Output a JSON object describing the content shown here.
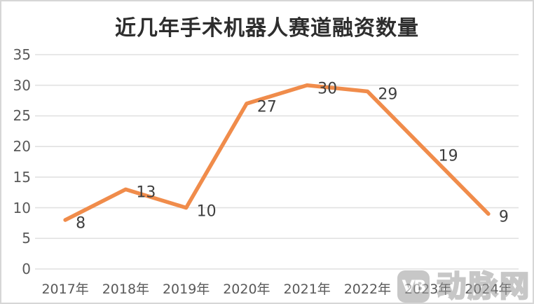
{
  "watermark": {
    "logo_text": "VB",
    "name": "动脉网"
  },
  "chart_data": {
    "type": "line",
    "title": "近几年手术机器人赛道融资数量",
    "categories": [
      "2017年",
      "2018年",
      "2019年",
      "2020年",
      "2021年",
      "2022年",
      "2023年",
      "2024年"
    ],
    "values": [
      8,
      13,
      10,
      27,
      30,
      29,
      19,
      9
    ],
    "xlabel": "",
    "ylabel": "",
    "ylim": [
      0,
      35
    ],
    "yticks": [
      0,
      5,
      10,
      15,
      20,
      25,
      30,
      35
    ],
    "grid": true,
    "legend_position": "none",
    "data_labels": "right",
    "colors": {
      "line": "#F08C4B",
      "gridline": "#E1E1E1",
      "axis_label": "#595959",
      "data_label": "#3F3F3F",
      "title": "#2D2D2D",
      "watermark": "#9B9B9B",
      "border": "#D6D6D6"
    }
  }
}
